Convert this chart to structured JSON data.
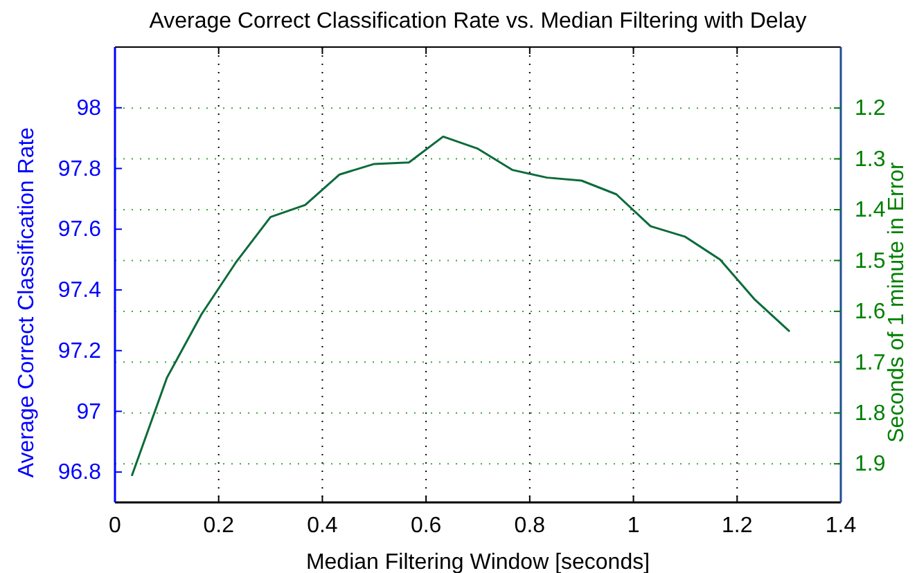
{
  "chart_data": {
    "type": "line",
    "title": "Average Correct Classification Rate vs. Median Filtering with Delay",
    "xlabel": "Median Filtering Window [seconds]",
    "ylabel": "Average Correct Classification Rate",
    "y2label": "Seconds of 1 minute in Error",
    "x": [
      0.033,
      0.1,
      0.167,
      0.233,
      0.3,
      0.367,
      0.433,
      0.5,
      0.567,
      0.633,
      0.7,
      0.767,
      0.833,
      0.9,
      0.967,
      1.033,
      1.1,
      1.167,
      1.233,
      1.3
    ],
    "series": [
      {
        "color": "#0b6b3a",
        "values": [
          96.79,
          97.11,
          97.32,
          97.49,
          97.64,
          97.68,
          97.78,
          97.815,
          97.82,
          97.905,
          97.865,
          97.795,
          97.77,
          97.76,
          97.715,
          97.61,
          97.575,
          97.5,
          97.37,
          97.265
        ]
      }
    ],
    "xlim": [
      0,
      1.4
    ],
    "xticks": [
      0,
      0.2,
      0.4,
      0.6,
      0.8,
      1,
      1.2,
      1.4
    ],
    "ylim": [
      96.7,
      98.2
    ],
    "yticks": [
      96.8,
      97,
      97.2,
      97.4,
      97.6,
      97.8,
      98
    ],
    "y2lim": [
      1.976,
      1.08
    ],
    "y2ticks": [
      1.2,
      1.3,
      1.4,
      1.5,
      1.6,
      1.7,
      1.8,
      1.9
    ],
    "grid": true,
    "line_style": "solid",
    "marker": "none"
  }
}
